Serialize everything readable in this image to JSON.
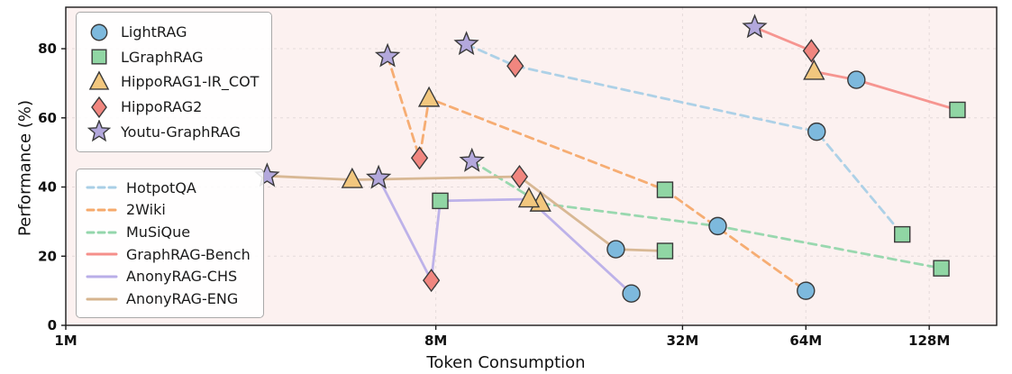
{
  "chart_data": {
    "type": "line",
    "title": "",
    "xlabel": "Token Consumption",
    "ylabel": "Performance (%)",
    "x_scale": "log2",
    "x_unit": "tokens (M = millions)",
    "xlim": [
      1,
      187
    ],
    "ylim": [
      0,
      92
    ],
    "grid": "faint dashed",
    "x_ticks": [
      {
        "v": 1,
        "label": "1M"
      },
      {
        "v": 8,
        "label": "8M"
      },
      {
        "v": 32,
        "label": "32M"
      },
      {
        "v": 64,
        "label": "64M"
      },
      {
        "v": 128,
        "label": "128M"
      }
    ],
    "y_ticks": [
      0,
      20,
      40,
      60,
      80
    ],
    "colors": {
      "plot_bg": "#fcf1f0",
      "frame": "#1a1a1a",
      "grid": "#c9c0c0",
      "marker_edge": "#3a3a3a"
    },
    "legend_methods_position": "upper-left",
    "legend_datasets_position": "mid-left",
    "methods": [
      {
        "name": "LightRAG",
        "marker": "circle",
        "color": "#7db9dd"
      },
      {
        "name": "LGraphRAG",
        "marker": "square",
        "color": "#90d6a4"
      },
      {
        "name": "HippoRAG1-IR_COT",
        "marker": "triangle",
        "color": "#f2c77e"
      },
      {
        "name": "HippoRAG2",
        "marker": "diamond",
        "color": "#f0867f"
      },
      {
        "name": "Youtu-GraphRAG",
        "marker": "star",
        "color": "#b3a8dc"
      }
    ],
    "datasets": [
      {
        "name": "HotpotQA",
        "line": "dashed",
        "color": "#a9cfe6",
        "points": [
          {
            "method": "Youtu-GraphRAG",
            "x": 9.5,
            "y": 81.3
          },
          {
            "method": "HippoRAG2",
            "x": 12.5,
            "y": 75.0
          },
          {
            "method": "LightRAG",
            "x": 68,
            "y": 56.0
          },
          {
            "method": "LGraphRAG",
            "x": 110,
            "y": 26.3
          }
        ]
      },
      {
        "name": "2Wiki",
        "line": "dashed",
        "color": "#f6a96b",
        "points": [
          {
            "method": "Youtu-GraphRAG",
            "x": 6.1,
            "y": 77.8
          },
          {
            "method": "HippoRAG2",
            "x": 7.3,
            "y": 48.4
          },
          {
            "method": "HippoRAG1-IR_COT",
            "x": 7.7,
            "y": 65.6
          },
          {
            "method": "LGraphRAG",
            "x": 29,
            "y": 39.2
          },
          {
            "method": "LightRAG",
            "x": 64,
            "y": 10.0
          }
        ]
      },
      {
        "name": "MuSiQue",
        "line": "dashed",
        "color": "#93d6ab",
        "points": [
          {
            "method": "Youtu-GraphRAG",
            "x": 9.8,
            "y": 47.5
          },
          {
            "method": "HippoRAG1-IR_COT",
            "x": 14.4,
            "y": 35.3
          },
          {
            "method": "LightRAG",
            "x": 39,
            "y": 28.7
          },
          {
            "method": "LGraphRAG",
            "x": 137,
            "y": 16.5
          }
        ]
      },
      {
        "name": "GraphRAG-Bench",
        "line": "solid",
        "color": "#f58f8a",
        "points": [
          {
            "method": "Youtu-GraphRAG",
            "x": 48,
            "y": 86.2
          },
          {
            "method": "HippoRAG2",
            "x": 66,
            "y": 79.4
          },
          {
            "method": "HippoRAG1-IR_COT",
            "x": 67,
            "y": 73.4
          },
          {
            "method": "LightRAG",
            "x": 85,
            "y": 71.0
          },
          {
            "method": "LGraphRAG",
            "x": 150,
            "y": 62.3
          }
        ]
      },
      {
        "name": "AnonyRAG-CHS",
        "line": "solid",
        "color": "#b9aee8",
        "points": [
          {
            "method": "Youtu-GraphRAG",
            "x": 5.8,
            "y": 42.6
          },
          {
            "method": "HippoRAG2",
            "x": 7.8,
            "y": 13.0
          },
          {
            "method": "LGraphRAG",
            "x": 8.2,
            "y": 36.0
          },
          {
            "method": "HippoRAG1-IR_COT",
            "x": 13.5,
            "y": 36.5
          },
          {
            "method": "LightRAG",
            "x": 24,
            "y": 9.2
          }
        ]
      },
      {
        "name": "AnonyRAG-ENG",
        "line": "solid",
        "color": "#d6b48e",
        "points": [
          {
            "method": "Youtu-GraphRAG",
            "x": 3.1,
            "y": 43.2
          },
          {
            "method": "HippoRAG1-IR_COT",
            "x": 5.0,
            "y": 42.1
          },
          {
            "method": "HippoRAG2",
            "x": 12.8,
            "y": 43.0
          },
          {
            "method": "LightRAG",
            "x": 22,
            "y": 22.0
          },
          {
            "method": "LGraphRAG",
            "x": 29,
            "y": 21.5
          }
        ]
      }
    ]
  }
}
